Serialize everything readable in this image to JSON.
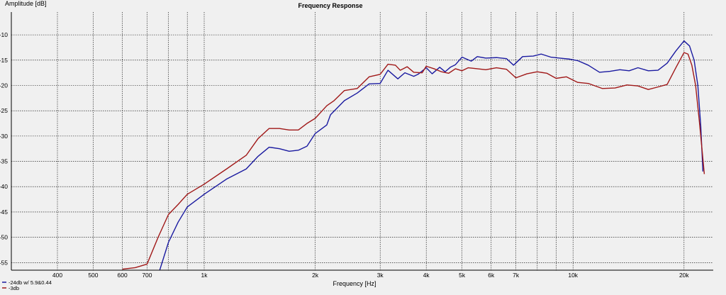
{
  "chart_data": {
    "type": "line",
    "title": "Frequency Response",
    "xlabel": "Frequency [Hz]",
    "ylabel": "Amplitude [dB]",
    "x_scale": "log",
    "xlim": [
      300,
      24000
    ],
    "ylim": [
      -56.5,
      -5.5
    ],
    "grid": true,
    "legend_position": "bottom-left",
    "x_ticks": [
      {
        "value": 400,
        "label": "400"
      },
      {
        "value": 500,
        "label": "500"
      },
      {
        "value": 600,
        "label": "600"
      },
      {
        "value": 700,
        "label": "700"
      },
      {
        "value": 1000,
        "label": "1k"
      },
      {
        "value": 2000,
        "label": "2k"
      },
      {
        "value": 3000,
        "label": "3k"
      },
      {
        "value": 4000,
        "label": "4k"
      },
      {
        "value": 5000,
        "label": "5k"
      },
      {
        "value": 6000,
        "label": "6k"
      },
      {
        "value": 7000,
        "label": "7k"
      },
      {
        "value": 10000,
        "label": "10k"
      },
      {
        "value": 20000,
        "label": "20k"
      }
    ],
    "x_minor_ticks": [
      800,
      900,
      8000,
      9000
    ],
    "y_ticks": [
      -10,
      -15,
      -20,
      -25,
      -30,
      -35,
      -40,
      -45,
      -50,
      -55
    ],
    "series": [
      {
        "name": "-24db w/ 5.9&0.44",
        "color": "#1a1aa0",
        "points": [
          [
            750,
            -57.5
          ],
          [
            800,
            -51
          ],
          [
            850,
            -47
          ],
          [
            900,
            -44
          ],
          [
            1000,
            -41.5
          ],
          [
            1150,
            -38.5
          ],
          [
            1300,
            -36.5
          ],
          [
            1400,
            -34
          ],
          [
            1500,
            -32.2
          ],
          [
            1600,
            -32.5
          ],
          [
            1700,
            -33
          ],
          [
            1800,
            -32.8
          ],
          [
            1900,
            -32
          ],
          [
            2000,
            -29.5
          ],
          [
            2150,
            -27.8
          ],
          [
            2200,
            -25.8
          ],
          [
            2400,
            -23
          ],
          [
            2600,
            -21.5
          ],
          [
            2800,
            -19.7
          ],
          [
            3000,
            -19.6
          ],
          [
            3150,
            -17
          ],
          [
            3350,
            -18.7
          ],
          [
            3500,
            -17.5
          ],
          [
            3700,
            -18.2
          ],
          [
            3800,
            -17.8
          ],
          [
            4000,
            -16.5
          ],
          [
            4150,
            -17.7
          ],
          [
            4350,
            -16.4
          ],
          [
            4500,
            -17.3
          ],
          [
            4650,
            -16.4
          ],
          [
            4800,
            -15.9
          ],
          [
            5000,
            -14.4
          ],
          [
            5300,
            -15.2
          ],
          [
            5500,
            -14.3
          ],
          [
            5800,
            -14.6
          ],
          [
            6200,
            -14.5
          ],
          [
            6600,
            -14.7
          ],
          [
            6900,
            -16
          ],
          [
            7300,
            -14.3
          ],
          [
            7800,
            -14.2
          ],
          [
            8200,
            -13.8
          ],
          [
            8700,
            -14.4
          ],
          [
            9200,
            -14.6
          ],
          [
            9800,
            -14.8
          ],
          [
            10300,
            -15.1
          ],
          [
            11000,
            -16
          ],
          [
            11800,
            -17.4
          ],
          [
            12600,
            -17.2
          ],
          [
            13400,
            -16.9
          ],
          [
            14200,
            -17.1
          ],
          [
            15000,
            -16.5
          ],
          [
            16000,
            -17.1
          ],
          [
            17000,
            -17
          ],
          [
            18000,
            -15.6
          ],
          [
            19000,
            -13.2
          ],
          [
            20000,
            -11.2
          ],
          [
            20700,
            -12.2
          ],
          [
            21300,
            -15
          ],
          [
            21800,
            -20
          ],
          [
            22200,
            -28
          ],
          [
            22500,
            -37
          ]
        ]
      },
      {
        "name": "-3db",
        "color": "#a01818",
        "points": [
          [
            600,
            -56.3
          ],
          [
            650,
            -56
          ],
          [
            700,
            -55.3
          ],
          [
            750,
            -50
          ],
          [
            800,
            -45.5
          ],
          [
            850,
            -43.5
          ],
          [
            900,
            -41.5
          ],
          [
            1000,
            -39.5
          ],
          [
            1150,
            -36.5
          ],
          [
            1300,
            -33.8
          ],
          [
            1400,
            -30.5
          ],
          [
            1500,
            -28.5
          ],
          [
            1600,
            -28.5
          ],
          [
            1700,
            -28.8
          ],
          [
            1800,
            -28.8
          ],
          [
            1900,
            -27.5
          ],
          [
            2000,
            -26.5
          ],
          [
            2150,
            -24
          ],
          [
            2250,
            -23
          ],
          [
            2400,
            -21
          ],
          [
            2600,
            -20.6
          ],
          [
            2800,
            -18.3
          ],
          [
            3000,
            -17.8
          ],
          [
            3150,
            -15.8
          ],
          [
            3300,
            -16
          ],
          [
            3400,
            -17
          ],
          [
            3550,
            -16.3
          ],
          [
            3700,
            -17.4
          ],
          [
            3900,
            -17.5
          ],
          [
            4000,
            -16.2
          ],
          [
            4200,
            -16.7
          ],
          [
            4400,
            -17.3
          ],
          [
            4600,
            -17.6
          ],
          [
            4800,
            -16.7
          ],
          [
            5000,
            -17.1
          ],
          [
            5200,
            -16.5
          ],
          [
            5500,
            -16.7
          ],
          [
            5800,
            -16.9
          ],
          [
            6200,
            -16.5
          ],
          [
            6600,
            -16.8
          ],
          [
            7000,
            -18.5
          ],
          [
            7500,
            -17.7
          ],
          [
            8000,
            -17.3
          ],
          [
            8500,
            -17.6
          ],
          [
            9000,
            -18.6
          ],
          [
            9600,
            -18.3
          ],
          [
            10300,
            -19.4
          ],
          [
            11000,
            -19.6
          ],
          [
            12000,
            -20.6
          ],
          [
            13000,
            -20.5
          ],
          [
            14000,
            -19.9
          ],
          [
            15000,
            -20.1
          ],
          [
            16000,
            -20.8
          ],
          [
            17000,
            -20.3
          ],
          [
            18000,
            -19.8
          ],
          [
            19000,
            -16.5
          ],
          [
            20000,
            -13.5
          ],
          [
            20500,
            -13.8
          ],
          [
            21000,
            -16
          ],
          [
            21500,
            -20
          ],
          [
            22000,
            -27
          ],
          [
            22400,
            -33
          ],
          [
            22700,
            -37.5
          ]
        ]
      }
    ]
  }
}
